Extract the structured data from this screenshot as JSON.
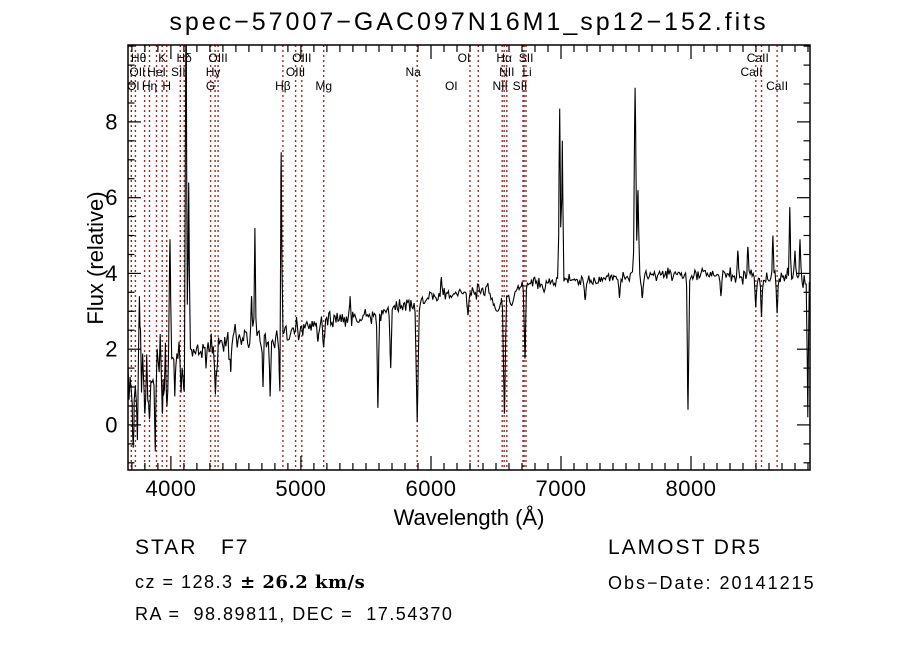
{
  "figure": {
    "title": "spec−57007−GAC097N16M1_sp12−152.fits",
    "footer": {
      "classification": "STAR   F7",
      "cz_value": "cz = 128.3 ",
      "cz_error": "± 26.2 km/s",
      "coordinates": "RA =  98.89811, DEC =  17.54370",
      "survey": "LAMOST DR5",
      "obs_date": "Obs−Date: 20141215"
    }
  },
  "chart_data": {
    "type": "line",
    "title": "spec−57007−GAC097N16M1_sp12−152.fits",
    "xlabel": "Wavelength (Å)",
    "ylabel": "Flux (relative)",
    "xlim": [
      3670,
      8915
    ],
    "ylim": [
      -1.19,
      10.03
    ],
    "x_ticks": [
      4000,
      5000,
      6000,
      7000,
      8000
    ],
    "y_ticks": [
      0,
      2,
      4,
      6,
      8
    ],
    "x_minor_step": 100,
    "y_minor_step": 0.5,
    "grid": false,
    "spectrum_color": "#000000",
    "marker_color": "#9E2B2B",
    "continuum": [
      [
        3670,
        1.15
      ],
      [
        3720,
        1.25
      ],
      [
        3780,
        1.4
      ],
      [
        3850,
        1.45
      ],
      [
        3920,
        1.55
      ],
      [
        3980,
        1.75
      ],
      [
        4050,
        1.85
      ],
      [
        4150,
        1.95
      ],
      [
        4250,
        2.05
      ],
      [
        4350,
        2.1
      ],
      [
        4450,
        2.25
      ],
      [
        4550,
        2.3
      ],
      [
        4650,
        2.4
      ],
      [
        4750,
        2.35
      ],
      [
        4850,
        2.4
      ],
      [
        4950,
        2.45
      ],
      [
        5000,
        2.5
      ],
      [
        5100,
        2.65
      ],
      [
        5200,
        2.75
      ],
      [
        5300,
        2.8
      ],
      [
        5400,
        2.8
      ],
      [
        5500,
        2.85
      ],
      [
        5600,
        2.95
      ],
      [
        5700,
        3.05
      ],
      [
        5800,
        3.2
      ],
      [
        5900,
        3.25
      ],
      [
        6000,
        3.4
      ],
      [
        6100,
        3.45
      ],
      [
        6200,
        3.5
      ],
      [
        6300,
        3.5
      ],
      [
        6400,
        3.55
      ],
      [
        6500,
        3.6
      ],
      [
        6600,
        3.65
      ],
      [
        6700,
        3.7
      ],
      [
        6800,
        3.75
      ],
      [
        6900,
        3.8
      ],
      [
        7000,
        3.8
      ],
      [
        7100,
        3.85
      ],
      [
        7200,
        3.8
      ],
      [
        7300,
        3.85
      ],
      [
        7400,
        3.9
      ],
      [
        7500,
        3.9
      ],
      [
        7600,
        3.95
      ],
      [
        7700,
        3.95
      ],
      [
        7800,
        4.0
      ],
      [
        7900,
        3.95
      ],
      [
        8000,
        3.95
      ],
      [
        8100,
        4.0
      ],
      [
        8200,
        3.95
      ],
      [
        8300,
        3.95
      ],
      [
        8400,
        3.9
      ],
      [
        8500,
        3.95
      ],
      [
        8600,
        3.9
      ],
      [
        8700,
        3.9
      ],
      [
        8800,
        3.9
      ],
      [
        8915,
        3.85
      ]
    ],
    "noise_amplitude": [
      [
        3670,
        0.95
      ],
      [
        3960,
        0.5
      ],
      [
        4150,
        0.38
      ],
      [
        4500,
        0.3
      ],
      [
        5000,
        0.2
      ],
      [
        5600,
        0.18
      ],
      [
        6600,
        0.15
      ],
      [
        7600,
        0.13
      ],
      [
        8300,
        0.25
      ],
      [
        8915,
        0.3
      ]
    ],
    "features": [
      {
        "wl": 3710,
        "flux": -0.6,
        "w": 5
      },
      {
        "wl": 3742,
        "flux": -0.4,
        "w": 4
      },
      {
        "wl": 3758,
        "flux": 3.4,
        "w": 4
      },
      {
        "wl": 3800,
        "flux": 0.3,
        "w": 5
      },
      {
        "wl": 3835,
        "flux": 0.15,
        "w": 6
      },
      {
        "wl": 3880,
        "flux": -0.7,
        "w": 4
      },
      {
        "wl": 3935,
        "flux": 0.3,
        "w": 6
      },
      {
        "wl": 3970,
        "flux": 0.5,
        "w": 6
      },
      {
        "wl": 3993,
        "flux": 4.9,
        "w": 5
      },
      {
        "wl": 4030,
        "flux": 0.75,
        "w": 5
      },
      {
        "wl": 4078,
        "flux": 0.85,
        "w": 5
      },
      {
        "wl": 4104,
        "flux": 0.6,
        "w": 6
      },
      {
        "wl": 4116,
        "flux": 11.0,
        "w": 5
      },
      {
        "wl": 4137,
        "flux": 6.4,
        "w": 4
      },
      {
        "wl": 4342,
        "flux": 0.8,
        "w": 7
      },
      {
        "wl": 4460,
        "flux": 1.4,
        "w": 4
      },
      {
        "wl": 4620,
        "flux": 3.4,
        "w": 4
      },
      {
        "wl": 4646,
        "flux": 5.2,
        "w": 4
      },
      {
        "wl": 4708,
        "flux": 1.0,
        "w": 4
      },
      {
        "wl": 4763,
        "flux": 0.75,
        "w": 5
      },
      {
        "wl": 4838,
        "flux": 0.6,
        "w": 5
      },
      {
        "wl": 4848,
        "flux": 7.2,
        "w": 4
      },
      {
        "wl": 5130,
        "flux": 2.2,
        "w": 5
      },
      {
        "wl": 5175,
        "flux": 2.05,
        "w": 6
      },
      {
        "wl": 5378,
        "flux": 3.4,
        "w": 4
      },
      {
        "wl": 5592,
        "flux": 0.45,
        "w": 5
      },
      {
        "wl": 5690,
        "flux": 1.5,
        "w": 5
      },
      {
        "wl": 5894,
        "flux": 0.07,
        "w": 7
      },
      {
        "wl": 6080,
        "flux": 3.9,
        "w": 4
      },
      {
        "wl": 6284,
        "flux": 2.9,
        "w": 6
      },
      {
        "wl": 6510,
        "flux": 3.0,
        "w": 30
      },
      {
        "wl": 6565,
        "flux": 0.3,
        "w": 7
      },
      {
        "wl": 6620,
        "flux": 3.15,
        "w": 18
      },
      {
        "wl": 6723,
        "flux": 1.75,
        "w": 5
      },
      {
        "wl": 6990,
        "flux": 8.35,
        "w": 5
      },
      {
        "wl": 7010,
        "flux": 7.5,
        "w": 4
      },
      {
        "wl": 7186,
        "flux": 3.3,
        "w": 6
      },
      {
        "wl": 7450,
        "flux": 3.35,
        "w": 5
      },
      {
        "wl": 7570,
        "flux": 8.9,
        "w": 6
      },
      {
        "wl": 7592,
        "flux": 6.2,
        "w": 5
      },
      {
        "wl": 7625,
        "flux": 3.35,
        "w": 6
      },
      {
        "wl": 7977,
        "flux": 0.4,
        "w": 5
      },
      {
        "wl": 8230,
        "flux": 3.4,
        "w": 5
      },
      {
        "wl": 8360,
        "flux": 4.6,
        "w": 4
      },
      {
        "wl": 8437,
        "flux": 4.7,
        "w": 4
      },
      {
        "wl": 8498,
        "flux": 3.1,
        "w": 5
      },
      {
        "wl": 8542,
        "flux": 2.85,
        "w": 5
      },
      {
        "wl": 8630,
        "flux": 5.0,
        "w": 4
      },
      {
        "wl": 8662,
        "flux": 2.95,
        "w": 5
      },
      {
        "wl": 8760,
        "flux": 5.75,
        "w": 4
      },
      {
        "wl": 8800,
        "flux": 4.6,
        "w": 4
      },
      {
        "wl": 8838,
        "flux": 4.9,
        "w": 4
      },
      {
        "wl": 8898,
        "flux": 0.2,
        "w": 4
      }
    ],
    "spectral_lines": [
      {
        "label": "Hθ",
        "wl": 3798,
        "row": 1,
        "dx": -6
      },
      {
        "label": "K",
        "wl": 3933,
        "row": 1,
        "dx": 0
      },
      {
        "label": "Hδ",
        "wl": 4102,
        "row": 1,
        "dx": 0
      },
      {
        "label": "OIII",
        "wl": 4363,
        "row": 1,
        "dx": 0
      },
      {
        "label": "OIII",
        "wl": 5007,
        "row": 1,
        "dx": 0
      },
      {
        "label": "OI",
        "wl": 6300,
        "row": 1,
        "dx": -6
      },
      {
        "label": "Hα",
        "wl": 6563,
        "row": 1,
        "dx": 0
      },
      {
        "label": "SII",
        "wl": 6716,
        "row": 1,
        "dx": 2
      },
      {
        "label": "CaII",
        "wl": 8498,
        "row": 1,
        "dx": 2
      },
      {
        "label": "OII",
        "wl": 3727,
        "row": 2,
        "dx": 2
      },
      {
        "label": "HeI",
        "wl": 3889,
        "row": 2,
        "dx": 0
      },
      {
        "label": "SII",
        "wl": 4072,
        "row": 2,
        "dx": -2
      },
      {
        "label": "Hγ",
        "wl": 4340,
        "row": 2,
        "dx": -2
      },
      {
        "label": "OIII",
        "wl": 4959,
        "row": 2,
        "dx": 0
      },
      {
        "label": "Na",
        "wl": 5894,
        "row": 2,
        "dx": -4
      },
      {
        "label": "NII",
        "wl": 6583,
        "row": 2,
        "dx": 0
      },
      {
        "label": "Li",
        "wl": 6708,
        "row": 2,
        "dx": 4
      },
      {
        "label": "CaII",
        "wl": 8542,
        "row": 2,
        "dx": -10
      },
      {
        "label": "OI",
        "wl": 3695,
        "row": 3,
        "dx": 2
      },
      {
        "label": "Hη",
        "wl": 3835,
        "row": 3,
        "dx": 0
      },
      {
        "label": "H",
        "wl": 3968,
        "row": 3,
        "dx": 0
      },
      {
        "label": "G",
        "wl": 4305,
        "row": 3,
        "dx": 0
      },
      {
        "label": "Hβ",
        "wl": 4861,
        "row": 3,
        "dx": 0
      },
      {
        "label": "Mg",
        "wl": 5175,
        "row": 3,
        "dx": 0
      },
      {
        "label": "OI",
        "wl": 6364,
        "row": 3,
        "dx": -27
      },
      {
        "label": "NII",
        "wl": 6548,
        "row": 3,
        "dx": -2
      },
      {
        "label": "SII",
        "wl": 6731,
        "row": 3,
        "dx": -6
      },
      {
        "label": "CaII",
        "wl": 8662,
        "row": 3,
        "dx": 0
      }
    ],
    "marker_wavelengths": [
      3695,
      3727,
      3798,
      3835,
      3889,
      3933,
      3968,
      4072,
      4102,
      4305,
      4340,
      4363,
      4861,
      4959,
      5007,
      5175,
      5894,
      6300,
      6364,
      6548,
      6563,
      6583,
      6708,
      6716,
      6731,
      8498,
      8542,
      8662
    ]
  }
}
